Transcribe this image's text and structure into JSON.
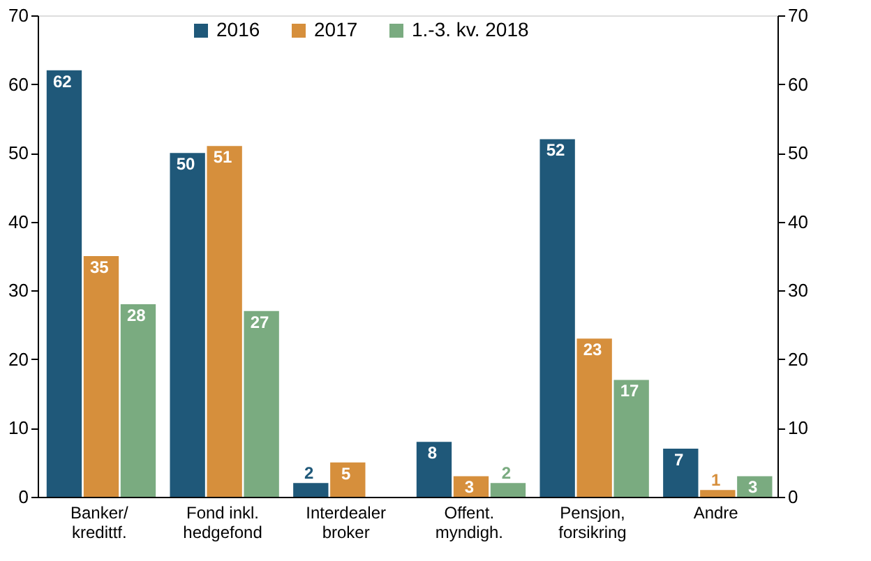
{
  "chart_data": {
    "type": "bar",
    "categories": [
      "Banker/\nkredittf.",
      "Fond inkl.\nhedgefond",
      "Interdealer\nbroker",
      "Offent.\nmyndigh.",
      "Pensjon,\nforsikring",
      "Andre"
    ],
    "series": [
      {
        "name": "2016",
        "color": "#1f5879",
        "values": [
          62,
          50,
          2,
          8,
          52,
          7
        ]
      },
      {
        "name": "2017",
        "color": "#d68f3c",
        "values": [
          35,
          51,
          5,
          3,
          23,
          1
        ]
      },
      {
        "name": "1.-3. kv. 2018",
        "color": "#7aab80",
        "values": [
          28,
          27,
          null,
          2,
          17,
          3
        ]
      }
    ],
    "ylim": [
      0,
      70
    ],
    "yticks": [
      0,
      10,
      20,
      30,
      40,
      50,
      60,
      70
    ],
    "y2lim": [
      0,
      70
    ],
    "y2ticks": [
      0,
      10,
      20,
      30,
      40,
      50,
      60,
      70
    ],
    "grid": false,
    "legend": "top",
    "data_labels": true
  }
}
